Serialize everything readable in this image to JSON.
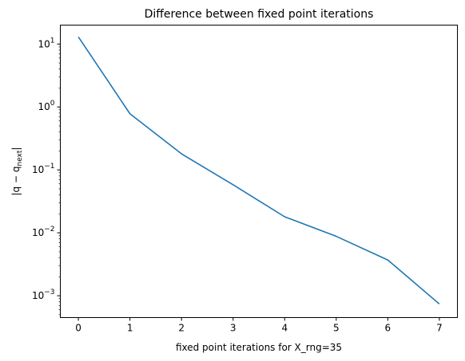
{
  "chart_data": {
    "type": "line",
    "title": "Difference between fixed point iterations",
    "xlabel": "fixed point iterations for X_rng=35",
    "ylabel": {
      "main": "|q − q",
      "sub": "next",
      "tail": "|"
    },
    "yscale": "log",
    "xlim": [
      -0.35,
      7.35
    ],
    "ylim": [
      0.00045,
      20
    ],
    "x_ticks": [
      "0",
      "1",
      "2",
      "3",
      "4",
      "5",
      "6",
      "7"
    ],
    "y_ticks": [
      {
        "base": "10",
        "exp": "1",
        "value": 10
      },
      {
        "base": "10",
        "exp": "0",
        "value": 1
      },
      {
        "base": "10",
        "exp": "−1",
        "value": 0.1
      },
      {
        "base": "10",
        "exp": "−2",
        "value": 0.01
      },
      {
        "base": "10",
        "exp": "−3",
        "value": 0.001
      }
    ],
    "grid": false,
    "series": [
      {
        "color": "#1f77b4",
        "x": [
          0,
          1,
          2,
          3,
          4,
          5,
          6,
          7
        ],
        "y": [
          13.0,
          0.78,
          0.18,
          0.058,
          0.018,
          0.0088,
          0.0037,
          0.00074
        ]
      }
    ]
  }
}
